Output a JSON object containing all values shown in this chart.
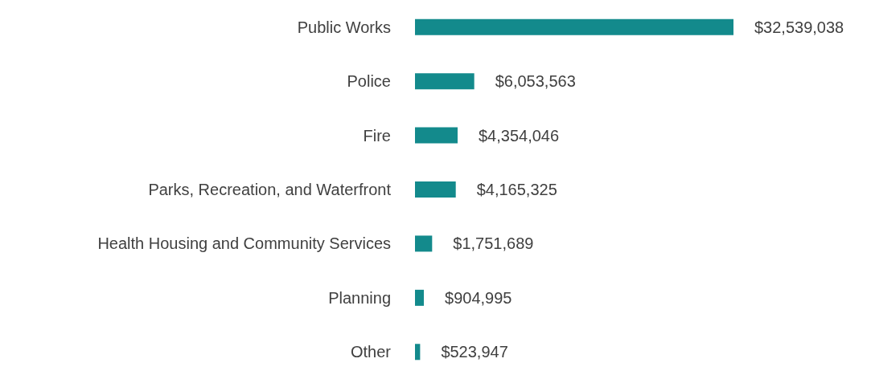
{
  "chart_data": {
    "type": "bar",
    "orientation": "horizontal",
    "categories": [
      "Public Works",
      "Police",
      "Fire",
      "Parks, Recreation, and Waterfront",
      "Health Housing and Community Services",
      "Planning",
      "Other"
    ],
    "values": [
      32539038,
      6053563,
      4354046,
      4165325,
      1751689,
      904995,
      523947
    ],
    "value_labels": [
      "$32,539,038",
      "$6,053,563",
      "$4,354,046",
      "$4,165,325",
      "$1,751,689",
      "$904,995",
      "$523,947"
    ],
    "color": "#138a8c"
  }
}
